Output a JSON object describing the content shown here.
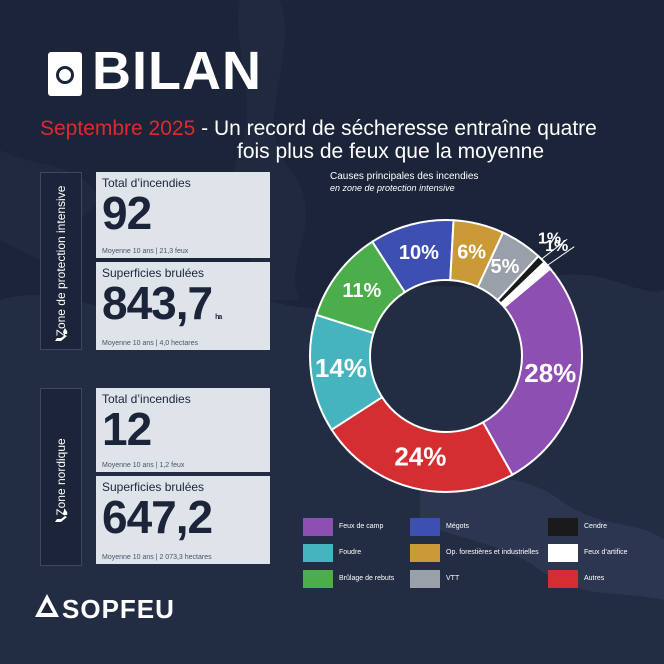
{
  "header": {
    "title": "BILAN",
    "subtitle_red": "Septembre 2025",
    "subtitle_rest_1": " - Un record de sécheresse entraîne quatre",
    "subtitle_rest_2": "fois plus de feux que la moyenne"
  },
  "zones": [
    {
      "label": "Zone de protection intensive",
      "fires_label": "Total d’incendies",
      "fires_value": "92",
      "fires_avg": "Moyenne 10 ans | 21,3 feux",
      "area_label": "Superficies brulées",
      "area_value": "843,7",
      "area_unit": "ha",
      "area_avg": "Moyenne 10 ans | 4,0 hectares"
    },
    {
      "label": "Zone nordique",
      "fires_label": "Total d’incendies",
      "fires_value": "12",
      "fires_avg": "Moyenne 10 ans | 1,2 feux",
      "area_label": "Superficies brulées",
      "area_value": "647,2",
      "area_avg": "Moyenne 10 ans | 2 073,3 hectares"
    }
  ],
  "brand": {
    "name": "SOPFEU"
  },
  "colors": {
    "background": "#1b2438",
    "accent_red": "#e02830",
    "card": "#dfe3ea"
  },
  "chart_data": {
    "type": "pie",
    "donut": true,
    "title": "Causes principales des incendies",
    "subtitle": "en zone de protection intensive",
    "slices": [
      {
        "name": "Feux de camp",
        "value": 28,
        "label": "28%",
        "color": "#8e4fb3"
      },
      {
        "name": "Autres",
        "value": 24,
        "label": "24%",
        "color": "#d42e33"
      },
      {
        "name": "Foudre",
        "value": 14,
        "label": "14%",
        "color": "#46b4bf"
      },
      {
        "name": "Brûlage de rebuts",
        "value": 11,
        "label": "11%",
        "color": "#4cae4a"
      },
      {
        "name": "Mégots",
        "value": 10,
        "label": "10%",
        "color": "#3d4fb0"
      },
      {
        "name": "Op. forestières et industrielles",
        "value": 6,
        "label": "6%",
        "color": "#c99a35"
      },
      {
        "name": "VTT",
        "value": 5,
        "label": "5%",
        "color": "#9aa0aa"
      },
      {
        "name": "Cendre",
        "value": 1,
        "label": "1%",
        "color": "#1a1a1a"
      },
      {
        "name": "Feux d’artifice",
        "value": 1,
        "label": "1%",
        "color": "#ffffff"
      }
    ],
    "legend": [
      {
        "name": "Feux de camp",
        "color": "#8e4fb3"
      },
      {
        "name": "Mégots",
        "color": "#3d4fb0"
      },
      {
        "name": "Cendre",
        "color": "#1a1a1a"
      },
      {
        "name": "Foudre",
        "color": "#46b4bf"
      },
      {
        "name": "Op. forestières et industrielles",
        "color": "#c99a35"
      },
      {
        "name": "Feux d’artifice",
        "color": "#ffffff"
      },
      {
        "name": "Brûlage de rebuts",
        "color": "#4cae4a"
      },
      {
        "name": "VTT",
        "color": "#9aa0aa"
      },
      {
        "name": "Autres",
        "color": "#d42e33"
      }
    ],
    "legend_placement": "bottom"
  }
}
